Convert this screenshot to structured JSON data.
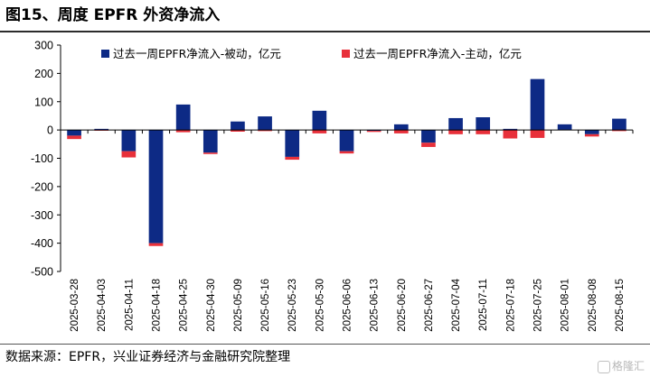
{
  "header": {
    "title": "图15、周度 EPFR 外资净流入"
  },
  "footer": {
    "source": "数据来源：EPFR，兴业证券经济与金融研究院整理"
  },
  "watermark": {
    "text": "格隆汇"
  },
  "colors": {
    "passive": "#0d2a85",
    "active": "#e8303a",
    "axis": "#000000"
  },
  "chart_data": {
    "type": "bar",
    "stacked": true,
    "categories": [
      "2025-03-28",
      "2025-04-03",
      "2025-04-11",
      "2025-04-18",
      "2025-04-25",
      "2025-04-30",
      "2025-05-09",
      "2025-05-16",
      "2025-05-23",
      "2025-05-30",
      "2025-06-06",
      "2025-06-13",
      "2025-06-20",
      "2025-06-27",
      "2025-07-04",
      "2025-07-11",
      "2025-07-18",
      "2025-07-25",
      "2025-08-01",
      "2025-08-08",
      "2025-08-15"
    ],
    "series": [
      {
        "name": "过去一周EPFR净流入-被动，亿元",
        "color": "#0d2a85",
        "values": [
          -20,
          4,
          -75,
          -400,
          90,
          -80,
          30,
          48,
          -95,
          68,
          -75,
          -3,
          20,
          -45,
          42,
          45,
          4,
          180,
          20,
          -15,
          40
        ]
      },
      {
        "name": "过去一周EPFR净流入-主动，亿元",
        "color": "#e8303a",
        "values": [
          -12,
          -2,
          -22,
          -10,
          -8,
          -5,
          -6,
          -4,
          -10,
          -12,
          -8,
          -4,
          -12,
          -15,
          -15,
          -15,
          -30,
          -28,
          0,
          -8,
          -4
        ]
      }
    ],
    "title": "",
    "xlabel": "",
    "ylabel": "",
    "ylim": [
      -500,
      300
    ],
    "yticks": [
      300,
      200,
      100,
      0,
      -100,
      -200,
      -300,
      -400,
      -500
    ],
    "legend": "top",
    "grid": false
  }
}
